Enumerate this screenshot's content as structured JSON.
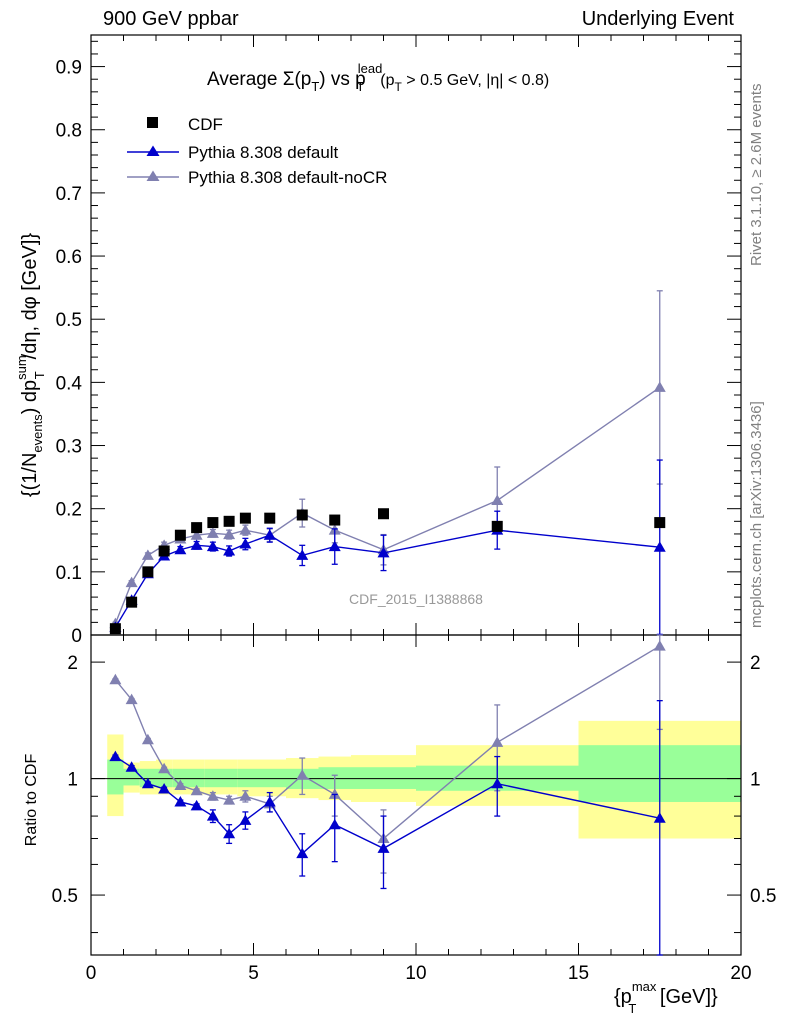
{
  "header": {
    "left": "900 GeV ppbar",
    "right": "Underlying Event"
  },
  "side_labels": {
    "rivet": "Rivet 3.1.10, ≥ 2.6M events",
    "mcplots": "mcplots.cern.ch [arXiv:1306.3436]"
  },
  "watermark": "CDF_2015_I1388868",
  "colors": {
    "data": "#000000",
    "default": "#0000cc",
    "nocr": "#8080b0",
    "band_inner": "#99ff99",
    "band_outer": "#ffff99"
  },
  "chart_data": [
    {
      "type": "scatter",
      "title": "Average Σ(p_T) vs p_T^lead (p_T > 0.5 GeV, |η| < 0.8)",
      "title_parts": {
        "main": "Average Σ(p",
        "sub_T": "T",
        "mid": ") vs p",
        "sup_lead": "lead",
        "tail": "(p",
        "tail2": " > 0.5 GeV, |η| < 0.8)"
      },
      "ylabel": "{(1/N_events) dp_T^sum/dη, dφ [GeV]}",
      "ylabel_parts": {
        "a": "{(1/N",
        "b": "events",
        "c": ") dp",
        "d": "sum",
        "e": "T",
        "f": "/dη, dφ [GeV]}"
      },
      "xlim": [
        0,
        20
      ],
      "ylim": [
        0,
        0.95
      ],
      "yticks": [
        0,
        0.1,
        0.2,
        0.3,
        0.4,
        0.5,
        0.6,
        0.7,
        0.8,
        0.9
      ],
      "ytick_labels": [
        "0",
        "0.1",
        "0.2",
        "0.3",
        "0.4",
        "0.5",
        "0.6",
        "0.7",
        "0.8",
        "0.9"
      ],
      "legend_position": "top-left",
      "series": [
        {
          "name": "CDF",
          "marker": "square",
          "x": [
            0.75,
            1.25,
            1.75,
            2.25,
            2.75,
            3.25,
            3.75,
            4.25,
            4.75,
            5.5,
            6.5,
            7.5,
            9.0,
            12.5,
            17.5
          ],
          "y": [
            0.01,
            0.052,
            0.1,
            0.133,
            0.158,
            0.17,
            0.178,
            0.18,
            0.185,
            0.185,
            0.19,
            0.182,
            0.192,
            0.172,
            0.178
          ]
        },
        {
          "name": "Pythia 8.308 default",
          "marker": "triangle",
          "x": [
            0.75,
            1.25,
            1.75,
            2.25,
            2.75,
            3.25,
            3.75,
            4.25,
            4.75,
            5.5,
            6.5,
            7.5,
            9.0,
            12.5,
            17.5
          ],
          "y": [
            0.012,
            0.055,
            0.097,
            0.125,
            0.135,
            0.142,
            0.14,
            0.133,
            0.144,
            0.158,
            0.126,
            0.14,
            0.13,
            0.166,
            0.139
          ],
          "yerr": [
            0.002,
            0.003,
            0.004,
            0.005,
            0.005,
            0.006,
            0.007,
            0.008,
            0.009,
            0.011,
            0.016,
            0.028,
            0.028,
            0.03,
            0.138
          ]
        },
        {
          "name": "Pythia 8.308 default-noCR",
          "marker": "triangle",
          "x": [
            0.75,
            1.25,
            1.75,
            2.25,
            2.75,
            3.25,
            3.75,
            4.25,
            4.75,
            5.5,
            6.5,
            7.5,
            9.0,
            12.5,
            17.5
          ],
          "y": [
            0.018,
            0.083,
            0.126,
            0.142,
            0.152,
            0.158,
            0.161,
            0.159,
            0.166,
            0.158,
            0.193,
            0.166,
            0.135,
            0.213,
            0.392
          ],
          "yerr": [
            0.002,
            0.003,
            0.004,
            0.005,
            0.005,
            0.006,
            0.006,
            0.007,
            0.008,
            0.01,
            0.022,
            0.02,
            0.024,
            0.053,
            0.153
          ]
        }
      ]
    },
    {
      "type": "scatter",
      "ylabel": "Ratio to CDF",
      "xlabel": "{p_T^max [GeV]}",
      "xlabel_parts": {
        "a": "{p",
        "sup": "max",
        "sub": "T",
        "b": " [GeV]}"
      },
      "xlim": [
        0,
        20
      ],
      "ylim": [
        0.35,
        2.35
      ],
      "xticks": [
        0,
        5,
        10,
        15,
        20
      ],
      "xtick_labels": [
        "0",
        "5",
        "10",
        "15",
        "20"
      ],
      "yticks": [
        0.5,
        1,
        2
      ],
      "ytick_labels": [
        "0.5",
        "1",
        "2"
      ],
      "bands": {
        "edges": [
          0.5,
          1.0,
          1.5,
          2.0,
          2.5,
          3.0,
          3.5,
          4.0,
          4.5,
          5.0,
          6.0,
          7.0,
          8.0,
          10.0,
          15.0,
          20.0
        ],
        "inner": [
          [
            0.91,
            1.12
          ],
          [
            0.96,
            1.06
          ],
          [
            0.95,
            1.06
          ],
          [
            0.95,
            1.06
          ],
          [
            0.95,
            1.06
          ],
          [
            0.95,
            1.06
          ],
          [
            0.95,
            1.06
          ],
          [
            0.95,
            1.06
          ],
          [
            0.95,
            1.06
          ],
          [
            0.95,
            1.06
          ],
          [
            0.94,
            1.06
          ],
          [
            0.94,
            1.07
          ],
          [
            0.94,
            1.07
          ],
          [
            0.93,
            1.08
          ],
          [
            0.87,
            1.22
          ]
        ],
        "outer": [
          [
            0.8,
            1.3
          ],
          [
            0.92,
            1.1
          ],
          [
            0.91,
            1.11
          ],
          [
            0.91,
            1.12
          ],
          [
            0.91,
            1.12
          ],
          [
            0.91,
            1.12
          ],
          [
            0.91,
            1.12
          ],
          [
            0.91,
            1.12
          ],
          [
            0.9,
            1.12
          ],
          [
            0.9,
            1.12
          ],
          [
            0.89,
            1.13
          ],
          [
            0.88,
            1.14
          ],
          [
            0.87,
            1.15
          ],
          [
            0.85,
            1.22
          ],
          [
            0.7,
            1.41
          ]
        ]
      },
      "series": [
        {
          "name": "Pythia 8.308 default",
          "x": [
            0.75,
            1.25,
            1.75,
            2.25,
            2.75,
            3.25,
            3.75,
            4.25,
            4.75,
            5.5,
            6.5,
            7.5,
            9.0,
            12.5,
            17.5
          ],
          "y": [
            1.14,
            1.07,
            0.97,
            0.94,
            0.87,
            0.85,
            0.8,
            0.72,
            0.78,
            0.87,
            0.64,
            0.76,
            0.66,
            0.97,
            0.79
          ],
          "yerr": [
            0.01,
            0.01,
            0.01,
            0.01,
            0.01,
            0.01,
            0.03,
            0.04,
            0.04,
            0.05,
            0.08,
            0.15,
            0.14,
            0.17,
            0.8
          ]
        },
        {
          "name": "Pythia 8.308 default-noCR",
          "x": [
            0.75,
            1.25,
            1.75,
            2.25,
            2.75,
            3.25,
            3.75,
            4.25,
            4.75,
            5.5,
            6.5,
            7.5,
            9.0,
            12.5,
            17.5
          ],
          "y": [
            1.8,
            1.6,
            1.26,
            1.06,
            0.96,
            0.93,
            0.9,
            0.88,
            0.9,
            0.86,
            1.02,
            0.91,
            0.7,
            1.24,
            2.2
          ],
          "yerr": [
            0.01,
            0.01,
            0.01,
            0.01,
            0.01,
            0.01,
            0.02,
            0.02,
            0.03,
            0.04,
            0.11,
            0.11,
            0.13,
            0.31,
            0.86
          ]
        }
      ]
    }
  ]
}
